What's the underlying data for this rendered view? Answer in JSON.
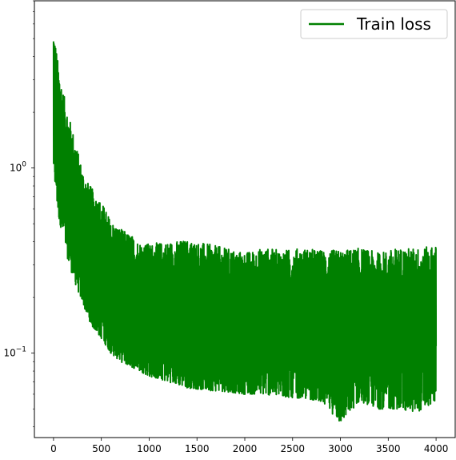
{
  "chart_data": {
    "type": "line",
    "title": "",
    "xlabel": "",
    "ylabel": "",
    "x_scale": "linear",
    "y_scale": "log",
    "xlim": [
      -200,
      4200
    ],
    "ylim": [
      0.035,
      8.0
    ],
    "x_ticks": [
      0,
      500,
      1000,
      1500,
      2000,
      2500,
      3000,
      3500,
      4000
    ],
    "x_tick_labels": [
      "0",
      "500",
      "1000",
      "1500",
      "2000",
      "2500",
      "3000",
      "3500",
      "4000"
    ],
    "y_ticks_major": [
      0.1,
      1
    ],
    "y_tick_labels": {
      "0.1": {
        "base": "10",
        "exp": "−1"
      },
      "1": {
        "base": "10",
        "exp": "0"
      }
    },
    "grid": false,
    "legend": {
      "position": "top-right",
      "entries": [
        {
          "label": "Train loss",
          "color": "#008000"
        }
      ]
    },
    "series": [
      {
        "name": "Train loss",
        "color": "#008000",
        "x": [
          0,
          50,
          100,
          150,
          200,
          250,
          300,
          350,
          400,
          450,
          500,
          600,
          700,
          800,
          900,
          1000,
          1200,
          1400,
          1600,
          1800,
          2000,
          2200,
          2400,
          2600,
          2800,
          3000,
          3200,
          3400,
          3600,
          3800,
          4000
        ],
        "upper_envelope": [
          5.8,
          3.6,
          2.6,
          2.0,
          1.6,
          1.25,
          1.0,
          0.85,
          0.78,
          0.7,
          0.66,
          0.52,
          0.47,
          0.44,
          0.4,
          0.39,
          0.4,
          0.41,
          0.39,
          0.37,
          0.35,
          0.37,
          0.36,
          0.37,
          0.36,
          0.36,
          0.37,
          0.35,
          0.37,
          0.37,
          0.38
        ],
        "lower_envelope": [
          0.95,
          0.55,
          0.42,
          0.32,
          0.26,
          0.22,
          0.19,
          0.16,
          0.14,
          0.13,
          0.12,
          0.1,
          0.09,
          0.085,
          0.08,
          0.075,
          0.07,
          0.065,
          0.063,
          0.062,
          0.06,
          0.06,
          0.058,
          0.057,
          0.055,
          0.042,
          0.055,
          0.05,
          0.05,
          0.048,
          0.055
        ]
      }
    ]
  }
}
